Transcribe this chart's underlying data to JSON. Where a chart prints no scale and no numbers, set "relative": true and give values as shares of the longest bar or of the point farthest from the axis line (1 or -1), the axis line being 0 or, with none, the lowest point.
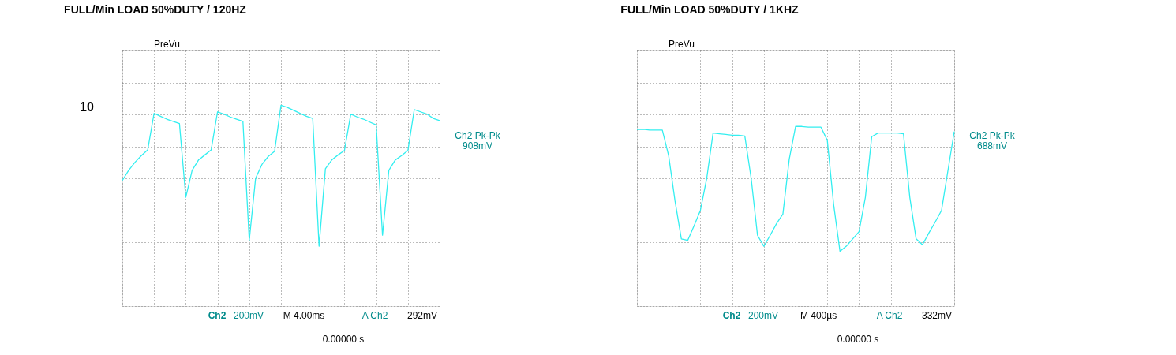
{
  "chart_data": [
    {
      "type": "line",
      "title": "FULL/Min LOAD 50%DUTY / 120HZ",
      "relative": true,
      "grid": true,
      "tick_labels": false,
      "line_style": "solid",
      "categories": [
        null,
        null,
        null,
        null,
        null,
        null,
        null,
        null,
        null,
        null,
        null,
        null,
        null,
        null,
        null,
        null,
        null,
        null,
        null,
        null,
        null,
        null,
        null,
        null,
        null,
        null,
        null,
        null,
        null,
        null,
        null,
        null,
        null,
        null,
        null,
        null,
        null,
        null,
        null,
        null,
        null,
        null,
        null,
        null,
        null,
        null,
        null,
        null,
        null,
        null,
        null
      ],
      "series": [
        {
          "color": "#33eef0",
          "values": [
            -0.03,
            0.11,
            0.22,
            0.31,
            0.39,
            0.89,
            0.85,
            0.81,
            0.78,
            0.75,
            -0.26,
            0.11,
            0.25,
            0.32,
            0.39,
            0.91,
            0.88,
            0.84,
            0.81,
            0.78,
            -0.85,
            0,
            0.19,
            0.3,
            0.37,
            1,
            0.97,
            0.93,
            0.89,
            0.85,
            0.82,
            -0.93,
            0.13,
            0.25,
            0.32,
            0.38,
            0.88,
            0.84,
            0.81,
            0.77,
            0.73,
            -0.78,
            0.11,
            0.25,
            0.31,
            0.38,
            0.94,
            0.91,
            0.88,
            0.82,
            0.79
          ]
        }
      ],
      "annotations": [
        "10",
        "PreVu",
        "Ch2 Pk-Pk",
        "908mV",
        "Ch2",
        "200mV",
        "M 4.00ms",
        "A  Ch2",
        "292mV",
        "0.00000 s"
      ]
    },
    {
      "type": "line",
      "title": "FULL/Min LOAD 50%DUTY / 1KHZ",
      "relative": true,
      "grid": true,
      "tick_labels": false,
      "line_style": "solid",
      "categories": [
        null,
        null,
        null,
        null,
        null,
        null,
        null,
        null,
        null,
        null,
        null,
        null,
        null,
        null,
        null,
        null,
        null,
        null,
        null,
        null,
        null,
        null,
        null,
        null,
        null,
        null,
        null,
        null,
        null,
        null,
        null,
        null,
        null,
        null,
        null,
        null,
        null,
        null,
        null,
        null,
        null,
        null,
        null,
        null,
        null,
        null,
        null,
        null,
        null,
        null,
        null
      ],
      "series": [
        {
          "color": "#33eef0",
          "values": [
            0.67,
            0.67,
            0.66,
            0.66,
            0.66,
            0.31,
            -0.31,
            -0.83,
            -0.85,
            -0.65,
            -0.44,
            0,
            0.62,
            0.61,
            0.6,
            0.59,
            0.59,
            0.58,
            0,
            -0.78,
            -0.93,
            -0.78,
            -0.62,
            -0.49,
            0.26,
            0.71,
            0.71,
            0.7,
            0.7,
            0.7,
            0.52,
            -0.36,
            -1,
            -0.93,
            -0.83,
            -0.73,
            -0.26,
            0.57,
            0.62,
            0.62,
            0.62,
            0.62,
            0.61,
            -0.26,
            -0.83,
            -0.91,
            -0.75,
            -0.6,
            -0.44,
            0.1,
            0.64
          ]
        }
      ],
      "annotations": [
        "PreVu",
        "Ch2 Pk-Pk",
        "688mV",
        "Ch2",
        "200mV",
        "M 400µs",
        "A  Ch2",
        "332mV",
        "0.00000 s"
      ]
    }
  ]
}
